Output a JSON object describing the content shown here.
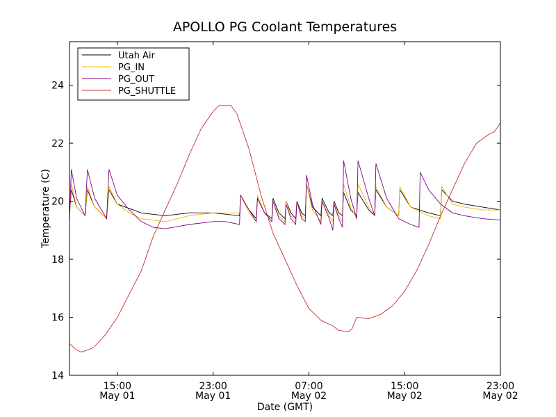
{
  "chart_data": {
    "type": "line",
    "title": "APOLLO PG Coolant Temperatures",
    "xlabel": "Date (GMT)",
    "ylabel": "Temperature (C)",
    "x_unit": "hours since May 01 11:00 GMT",
    "xlim": [
      0,
      36
    ],
    "ylim": [
      14,
      25.5
    ],
    "yticks": [
      14,
      16,
      18,
      20,
      22,
      24
    ],
    "xticks": [
      {
        "x": 4,
        "time": "15:00",
        "date": "May 01"
      },
      {
        "x": 12,
        "time": "23:00",
        "date": "May 01"
      },
      {
        "x": 20,
        "time": "07:00",
        "date": "May 02"
      },
      {
        "x": 28,
        "time": "15:00",
        "date": "May 02"
      },
      {
        "x": 36,
        "time": "23:00",
        "date": "May 02"
      }
    ],
    "legend_position": "top-left",
    "grid": false,
    "series": [
      {
        "name": "Utah Air",
        "color": "#000000",
        "points": [
          [
            0,
            19.5
          ],
          [
            0.15,
            20.4
          ],
          [
            0.6,
            19.8
          ],
          [
            1.3,
            19.5
          ],
          [
            1.5,
            20.4
          ],
          [
            2.1,
            19.8
          ],
          [
            3.1,
            19.4
          ],
          [
            3.3,
            20.4
          ],
          [
            4,
            19.9
          ],
          [
            6,
            19.6
          ],
          [
            8,
            19.5
          ],
          [
            10,
            19.6
          ],
          [
            12,
            19.6
          ],
          [
            14.2,
            19.5
          ],
          [
            14.3,
            20.2
          ],
          [
            15,
            19.7
          ],
          [
            15.6,
            19.4
          ],
          [
            15.7,
            20.1
          ],
          [
            16.3,
            19.6
          ],
          [
            16.9,
            19.4
          ],
          [
            17,
            20.1
          ],
          [
            17.5,
            19.6
          ],
          [
            18.0,
            19.4
          ],
          [
            18.1,
            20.0
          ],
          [
            18.5,
            19.6
          ],
          [
            18.9,
            19.4
          ],
          [
            19.0,
            20.0
          ],
          [
            19.4,
            19.6
          ],
          [
            19.7,
            19.5
          ],
          [
            19.8,
            20.6
          ],
          [
            20.3,
            19.8
          ],
          [
            21.0,
            19.5
          ],
          [
            21.1,
            20.1
          ],
          [
            21.7,
            19.6
          ],
          [
            22.0,
            19.5
          ],
          [
            22.1,
            20.0
          ],
          [
            22.5,
            19.6
          ],
          [
            22.8,
            19.5
          ],
          [
            22.9,
            20.3
          ],
          [
            23.5,
            19.7
          ],
          [
            24,
            19.5
          ],
          [
            24.1,
            20.3
          ],
          [
            25,
            19.7
          ],
          [
            25.5,
            19.5
          ],
          [
            25.6,
            20.4
          ],
          [
            26.5,
            19.8
          ],
          [
            27.5,
            19.5
          ],
          [
            27.6,
            20.4
          ],
          [
            28.5,
            19.8
          ],
          [
            30,
            19.6
          ],
          [
            31,
            19.5
          ],
          [
            31.1,
            20.4
          ],
          [
            32,
            20.0
          ],
          [
            33,
            19.9
          ],
          [
            34.5,
            19.8
          ],
          [
            36,
            19.7
          ]
        ]
      },
      {
        "name": "PG_IN",
        "color": "#f0b400",
        "points": [
          [
            0,
            19.4
          ],
          [
            0.15,
            20.6
          ],
          [
            0.6,
            19.8
          ],
          [
            1.3,
            19.5
          ],
          [
            1.5,
            20.5
          ],
          [
            2.1,
            19.8
          ],
          [
            3.1,
            19.4
          ],
          [
            3.3,
            20.5
          ],
          [
            4,
            19.9
          ],
          [
            5,
            19.6
          ],
          [
            6,
            19.4
          ],
          [
            8,
            19.3
          ],
          [
            10,
            19.5
          ],
          [
            12,
            19.6
          ],
          [
            14.2,
            19.6
          ],
          [
            14.3,
            20.2
          ],
          [
            15,
            19.6
          ],
          [
            15.6,
            19.3
          ],
          [
            15.7,
            20.2
          ],
          [
            16.3,
            19.6
          ],
          [
            16.9,
            19.3
          ],
          [
            17,
            20.0
          ],
          [
            17.5,
            19.5
          ],
          [
            18.0,
            19.3
          ],
          [
            18.1,
            20.0
          ],
          [
            18.5,
            19.5
          ],
          [
            18.9,
            19.3
          ],
          [
            19.0,
            20.0
          ],
          [
            19.4,
            19.5
          ],
          [
            19.7,
            19.4
          ],
          [
            19.8,
            20.6
          ],
          [
            20.3,
            19.7
          ],
          [
            21.0,
            19.3
          ],
          [
            21.1,
            20.0
          ],
          [
            21.7,
            19.5
          ],
          [
            22.0,
            19.3
          ],
          [
            22.1,
            19.9
          ],
          [
            22.5,
            19.5
          ],
          [
            22.8,
            19.3
          ],
          [
            22.9,
            20.6
          ],
          [
            23.5,
            19.8
          ],
          [
            24,
            19.4
          ],
          [
            24.1,
            20.6
          ],
          [
            25,
            19.8
          ],
          [
            25.5,
            19.5
          ],
          [
            25.6,
            20.5
          ],
          [
            26.5,
            19.8
          ],
          [
            27.5,
            19.5
          ],
          [
            27.6,
            20.5
          ],
          [
            28.5,
            19.8
          ],
          [
            30,
            19.5
          ],
          [
            31,
            19.4
          ],
          [
            31.1,
            20.5
          ],
          [
            32,
            19.9
          ],
          [
            33,
            19.8
          ],
          [
            34.5,
            19.7
          ],
          [
            36,
            19.7
          ]
        ]
      },
      {
        "name": "PG_OUT",
        "color": "#800080",
        "points": [
          [
            0,
            19.3
          ],
          [
            0.15,
            21.1
          ],
          [
            0.6,
            20.1
          ],
          [
            1.3,
            19.5
          ],
          [
            1.5,
            21.1
          ],
          [
            2.1,
            20.1
          ],
          [
            3.1,
            19.4
          ],
          [
            3.3,
            21.1
          ],
          [
            4,
            20.2
          ],
          [
            5,
            19.7
          ],
          [
            6,
            19.3
          ],
          [
            7,
            19.1
          ],
          [
            8,
            19.05
          ],
          [
            10,
            19.2
          ],
          [
            12,
            19.3
          ],
          [
            13,
            19.3
          ],
          [
            14.2,
            19.2
          ],
          [
            14.3,
            20.2
          ],
          [
            15,
            19.7
          ],
          [
            15.6,
            19.3
          ],
          [
            15.7,
            20.1
          ],
          [
            16.3,
            19.6
          ],
          [
            16.9,
            19.3
          ],
          [
            17,
            20.0
          ],
          [
            17.5,
            19.4
          ],
          [
            18.0,
            19.2
          ],
          [
            18.1,
            19.9
          ],
          [
            18.5,
            19.4
          ],
          [
            18.9,
            19.2
          ],
          [
            19.0,
            20.0
          ],
          [
            19.4,
            19.4
          ],
          [
            19.7,
            19.3
          ],
          [
            19.8,
            20.9
          ],
          [
            20.3,
            19.9
          ],
          [
            21.0,
            19.2
          ],
          [
            21.1,
            20.0
          ],
          [
            21.7,
            19.4
          ],
          [
            22.0,
            19.0
          ],
          [
            22.1,
            19.9
          ],
          [
            22.5,
            19.4
          ],
          [
            22.8,
            19.1
          ],
          [
            22.9,
            21.4
          ],
          [
            23.5,
            20.1
          ],
          [
            24,
            19.4
          ],
          [
            24.1,
            21.4
          ],
          [
            25,
            20.1
          ],
          [
            25.5,
            19.5
          ],
          [
            25.6,
            21.3
          ],
          [
            26.5,
            20.1
          ],
          [
            27.5,
            19.4
          ],
          [
            28.5,
            19.2
          ],
          [
            29.2,
            19.1
          ],
          [
            29.3,
            21.0
          ],
          [
            30,
            20.4
          ],
          [
            31,
            19.9
          ],
          [
            32,
            19.6
          ],
          [
            33,
            19.5
          ],
          [
            34.5,
            19.4
          ],
          [
            36,
            19.35
          ]
        ]
      },
      {
        "name": "PG_SHUTTLE",
        "color": "#c03030",
        "points": [
          [
            0,
            15.1
          ],
          [
            0.5,
            14.9
          ],
          [
            1,
            14.8
          ],
          [
            2,
            14.95
          ],
          [
            3,
            15.4
          ],
          [
            4,
            16.0
          ],
          [
            5,
            16.8
          ],
          [
            6,
            17.6
          ],
          [
            7,
            18.8
          ],
          [
            8,
            19.7
          ],
          [
            9,
            20.6
          ],
          [
            10,
            21.6
          ],
          [
            11,
            22.5
          ],
          [
            12,
            23.1
          ],
          [
            12.5,
            23.3
          ],
          [
            13.5,
            23.3
          ],
          [
            14,
            23.0
          ],
          [
            15,
            21.8
          ],
          [
            16,
            20.2
          ],
          [
            17,
            18.9
          ],
          [
            18,
            18.0
          ],
          [
            19,
            17.1
          ],
          [
            20,
            16.3
          ],
          [
            20.5,
            16.1
          ],
          [
            21,
            15.9
          ],
          [
            22,
            15.7
          ],
          [
            22.5,
            15.55
          ],
          [
            23.3,
            15.5
          ],
          [
            23.6,
            15.6
          ],
          [
            24,
            16.0
          ],
          [
            25,
            15.95
          ],
          [
            26,
            16.1
          ],
          [
            27,
            16.4
          ],
          [
            28,
            16.9
          ],
          [
            29,
            17.6
          ],
          [
            30,
            18.5
          ],
          [
            31,
            19.5
          ],
          [
            32,
            20.4
          ],
          [
            33,
            21.3
          ],
          [
            34,
            22.0
          ],
          [
            35,
            22.3
          ],
          [
            35.5,
            22.4
          ],
          [
            36,
            22.7
          ]
        ]
      }
    ]
  }
}
